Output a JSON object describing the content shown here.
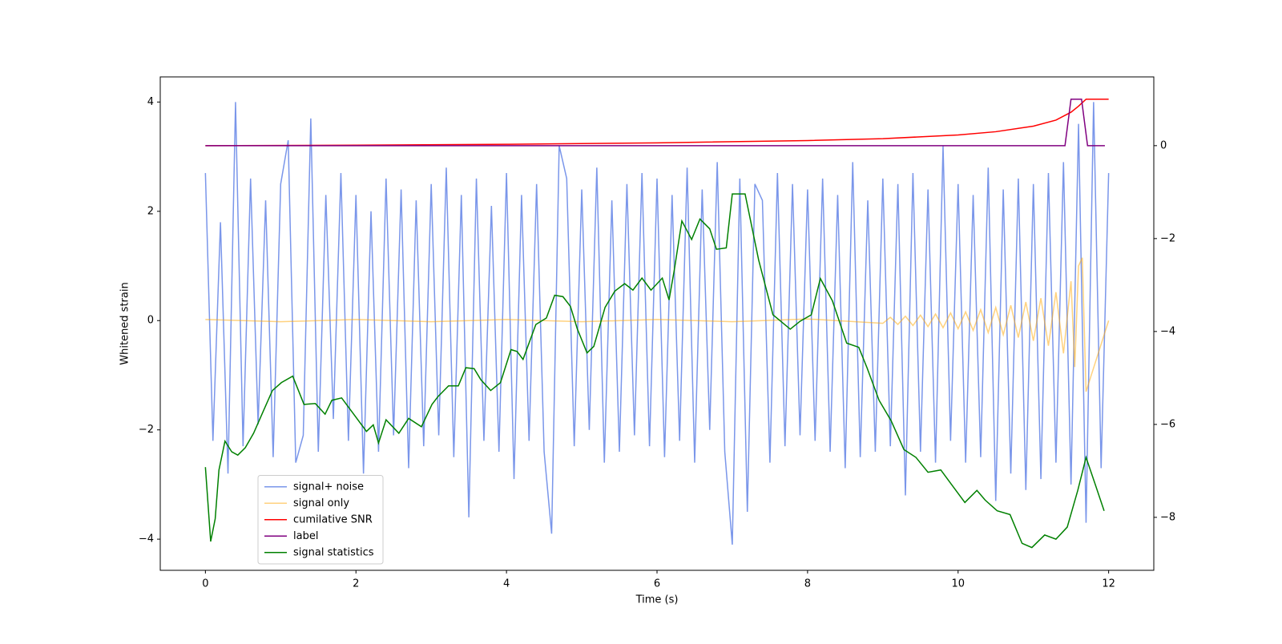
{
  "chart_data": {
    "type": "line",
    "xlabel": "Time (s)",
    "ylabel": "Whitened strain",
    "xlim": [
      -0.6,
      12.6
    ],
    "xticks": [
      0,
      2,
      4,
      6,
      8,
      10,
      12
    ],
    "ylim": [
      -4.57,
      4.46
    ],
    "yticks": [
      {
        "value": -4,
        "label": "−4"
      },
      {
        "value": -2,
        "label": "−2"
      },
      0,
      2,
      4
    ],
    "y2lim": [
      -9.14,
      1.48
    ],
    "y2ticks": [
      {
        "value": -8,
        "label": "−8"
      },
      {
        "value": -6,
        "label": "−6"
      },
      {
        "value": -4,
        "label": "−4"
      },
      {
        "value": -2,
        "label": "−2"
      },
      0
    ],
    "grid": false,
    "legend": "lower left",
    "series": [
      {
        "name": "signal+ noise",
        "color": "#4169e1",
        "alpha": 0.7,
        "x": [
          0,
          0.1,
          0.2,
          0.3,
          0.4,
          0.5,
          0.6,
          0.7,
          0.8,
          0.9,
          1,
          1.1,
          1.2,
          1.3,
          1.4,
          1.5,
          1.6,
          1.7,
          1.8,
          1.9,
          2,
          2.1,
          2.2,
          2.3,
          2.4,
          2.5,
          2.6,
          2.7,
          2.8,
          2.9,
          3,
          3.1,
          3.2,
          3.3,
          3.4,
          3.5,
          3.6,
          3.7,
          3.8,
          3.9,
          4,
          4.1,
          4.2,
          4.3,
          4.4,
          4.5,
          4.6,
          4.7,
          4.8,
          4.9,
          5,
          5.1,
          5.2,
          5.3,
          5.4,
          5.5,
          5.6,
          5.7,
          5.8,
          5.9,
          6,
          6.1,
          6.2,
          6.3,
          6.4,
          6.5,
          6.6,
          6.7,
          6.8,
          6.9,
          7,
          7.1,
          7.2,
          7.3,
          7.4,
          7.5,
          7.6,
          7.7,
          7.8,
          7.9,
          8,
          8.1,
          8.2,
          8.3,
          8.4,
          8.5,
          8.6,
          8.7,
          8.8,
          8.9,
          9,
          9.1,
          9.2,
          9.3,
          9.4,
          9.5,
          9.6,
          9.7,
          9.8,
          9.9,
          10,
          10.1,
          10.2,
          10.3,
          10.4,
          10.5,
          10.6,
          10.7,
          10.8,
          10.9,
          11,
          11.1,
          11.2,
          11.3,
          11.4,
          11.5,
          11.6,
          11.7,
          11.8,
          11.9,
          12
        ],
        "values": [
          2.7,
          -2.2,
          1.8,
          -2.8,
          4.0,
          -2.3,
          2.6,
          -1.9,
          2.2,
          -2.5,
          2.5,
          3.3,
          -2.6,
          -2.1,
          3.7,
          -2.4,
          2.3,
          -1.8,
          2.7,
          -2.2,
          2.3,
          -2.8,
          2.0,
          -2.4,
          2.6,
          -2.1,
          2.4,
          -2.7,
          2.2,
          -2.3,
          2.5,
          -2.1,
          2.8,
          -2.5,
          2.3,
          -3.6,
          2.6,
          -2.2,
          2.1,
          -2.4,
          2.7,
          -2.9,
          2.3,
          -2.2,
          2.5,
          -2.4,
          -3.9,
          3.2,
          2.6,
          -2.3,
          2.4,
          -2.0,
          2.8,
          -2.6,
          2.2,
          -2.4,
          2.5,
          -2.1,
          2.7,
          -2.3,
          2.6,
          -2.5,
          2.3,
          -2.2,
          2.8,
          -2.6,
          2.4,
          -2.0,
          2.9,
          -2.4,
          -4.1,
          2.6,
          -3.5,
          2.5,
          2.2,
          -2.6,
          2.7,
          -2.3,
          2.5,
          -2.1,
          2.4,
          -2.2,
          2.6,
          -2.4,
          2.3,
          -2.7,
          2.9,
          -2.5,
          2.2,
          -2.4,
          2.6,
          -2.3,
          2.5,
          -3.2,
          2.7,
          -2.4,
          2.4,
          -2.6,
          3.2,
          -2.2,
          2.5,
          -2.6,
          2.3,
          -2.5,
          2.8,
          -3.3,
          2.4,
          -2.8,
          2.6,
          -3.1,
          2.5,
          -2.9,
          2.7,
          -2.6,
          2.9,
          -3.0,
          3.6,
          -3.7,
          4.0,
          -2.7,
          2.7
        ]
      },
      {
        "name": "signal only",
        "color": "#ffa500",
        "alpha": 0.5,
        "x": [
          0,
          1,
          2,
          3,
          4,
          5,
          6,
          7,
          8,
          9,
          9.1,
          9.2,
          9.3,
          9.4,
          9.5,
          9.6,
          9.7,
          9.8,
          9.9,
          10,
          10.1,
          10.2,
          10.3,
          10.4,
          10.5,
          10.6,
          10.7,
          10.8,
          10.9,
          11,
          11.1,
          11.2,
          11.3,
          11.4,
          11.5,
          11.55,
          11.6,
          11.65,
          11.7,
          12
        ],
        "values": [
          0.02,
          -0.02,
          0.02,
          -0.02,
          0.02,
          -0.02,
          0.02,
          -0.02,
          0.03,
          -0.05,
          0.06,
          -0.07,
          0.08,
          -0.09,
          0.1,
          -0.11,
          0.12,
          -0.13,
          0.14,
          -0.15,
          0.16,
          -0.18,
          0.2,
          -0.22,
          0.24,
          -0.26,
          0.28,
          -0.31,
          0.34,
          -0.37,
          0.41,
          -0.46,
          0.52,
          -0.6,
          0.72,
          -0.85,
          1.0,
          1.15,
          -1.3,
          0
        ]
      },
      {
        "name": "cumilative SNR",
        "color": "#ff0000",
        "axis": "y2",
        "x": [
          0,
          2,
          4,
          6,
          8,
          9,
          10,
          10.5,
          11,
          11.3,
          11.5,
          11.6,
          11.7,
          12
        ],
        "values": [
          0,
          0.01,
          0.03,
          0.06,
          0.11,
          0.15,
          0.23,
          0.3,
          0.42,
          0.55,
          0.72,
          0.85,
          1.0,
          1.0
        ]
      },
      {
        "name": "label",
        "color": "#800080",
        "axis": "y2",
        "x": [
          0,
          11.42,
          11.5,
          11.64,
          11.72,
          11.95
        ],
        "values": [
          0,
          0,
          1,
          1,
          0,
          0
        ]
      },
      {
        "name": "signal statistics",
        "color": "#008000",
        "axis": "y2",
        "x": [
          0,
          0.07,
          0.13,
          0.18,
          0.26,
          0.35,
          0.43,
          0.53,
          0.64,
          0.77,
          0.89,
          1.01,
          1.16,
          1.31,
          1.46,
          1.59,
          1.68,
          1.81,
          1.98,
          2.14,
          2.23,
          2.3,
          2.4,
          2.57,
          2.7,
          2.87,
          3.01,
          3.09,
          3.23,
          3.36,
          3.46,
          3.57,
          3.66,
          3.79,
          3.92,
          4.06,
          4.14,
          4.22,
          4.39,
          4.53,
          4.64,
          4.75,
          4.85,
          4.94,
          5.07,
          5.16,
          5.31,
          5.44,
          5.57,
          5.68,
          5.8,
          5.92,
          6.07,
          6.16,
          6.23,
          6.33,
          6.46,
          6.57,
          6.7,
          6.79,
          6.92,
          7.0,
          7.17,
          7.35,
          7.54,
          7.77,
          7.9,
          8.05,
          8.17,
          8.33,
          8.52,
          8.68,
          8.79,
          8.95,
          9.11,
          9.28,
          9.44,
          9.6,
          9.77,
          9.93,
          10.09,
          10.25,
          10.36,
          10.52,
          10.69,
          10.85,
          10.98,
          11.15,
          11.3,
          11.45,
          11.59,
          11.7,
          11.83,
          11.94
        ],
        "values": [
          -6.92,
          -8.52,
          -8.03,
          -6.98,
          -6.36,
          -6.59,
          -6.66,
          -6.5,
          -6.19,
          -5.71,
          -5.27,
          -5.1,
          -4.96,
          -5.57,
          -5.55,
          -5.78,
          -5.48,
          -5.43,
          -5.8,
          -6.15,
          -6.01,
          -6.4,
          -5.9,
          -6.19,
          -5.87,
          -6.05,
          -5.57,
          -5.4,
          -5.17,
          -5.17,
          -4.78,
          -4.8,
          -5.04,
          -5.27,
          -5.1,
          -4.39,
          -4.43,
          -4.6,
          -3.85,
          -3.71,
          -3.22,
          -3.25,
          -3.46,
          -3.94,
          -4.46,
          -4.32,
          -3.48,
          -3.13,
          -2.97,
          -3.11,
          -2.85,
          -3.11,
          -2.85,
          -3.32,
          -2.67,
          -1.62,
          -2.02,
          -1.58,
          -1.79,
          -2.23,
          -2.2,
          -1.04,
          -1.04,
          -2.46,
          -3.64,
          -3.95,
          -3.78,
          -3.64,
          -2.86,
          -3.34,
          -4.25,
          -4.34,
          -4.78,
          -5.48,
          -5.92,
          -6.54,
          -6.71,
          -7.03,
          -6.98,
          -7.33,
          -7.68,
          -7.42,
          -7.63,
          -7.86,
          -7.94,
          -8.56,
          -8.65,
          -8.38,
          -8.47,
          -8.21,
          -7.42,
          -6.71,
          -7.33,
          -7.86
        ]
      }
    ]
  }
}
